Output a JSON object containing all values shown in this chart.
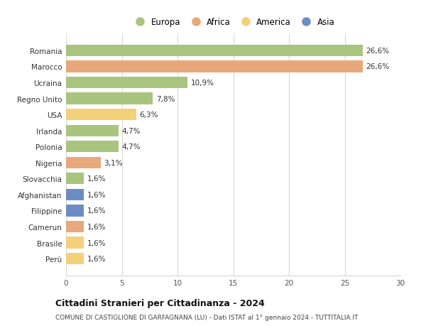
{
  "countries": [
    "Romania",
    "Marocco",
    "Ucraina",
    "Regno Unito",
    "USA",
    "Irlanda",
    "Polonia",
    "Nigeria",
    "Slovacchia",
    "Afghanistan",
    "Filippine",
    "Camerun",
    "Brasile",
    "Perù"
  ],
  "values": [
    26.6,
    26.6,
    10.9,
    7.8,
    6.3,
    4.7,
    4.7,
    3.1,
    1.6,
    1.6,
    1.6,
    1.6,
    1.6,
    1.6
  ],
  "labels": [
    "26,6%",
    "26,6%",
    "10,9%",
    "7,8%",
    "6,3%",
    "4,7%",
    "4,7%",
    "3,1%",
    "1,6%",
    "1,6%",
    "1,6%",
    "1,6%",
    "1,6%",
    "1,6%"
  ],
  "continents": [
    "Europa",
    "Africa",
    "Europa",
    "Europa",
    "America",
    "Europa",
    "Europa",
    "Africa",
    "Europa",
    "Asia",
    "Asia",
    "Africa",
    "America",
    "America"
  ],
  "colors": {
    "Europa": "#a8c47e",
    "Africa": "#e8a87c",
    "America": "#f5d07a",
    "Asia": "#6b8dc4"
  },
  "legend_order": [
    "Europa",
    "Africa",
    "America",
    "Asia"
  ],
  "xlim": [
    0,
    30
  ],
  "xticks": [
    0,
    5,
    10,
    15,
    20,
    25,
    30
  ],
  "title": "Cittadini Stranieri per Cittadinanza - 2024",
  "subtitle": "COMUNE DI CASTIGLIONE DI GARFAGNANA (LU) - Dati ISTAT al 1° gennaio 2024 - TUTTITALIA.IT",
  "background_color": "#ffffff",
  "grid_color": "#d8d8d8"
}
